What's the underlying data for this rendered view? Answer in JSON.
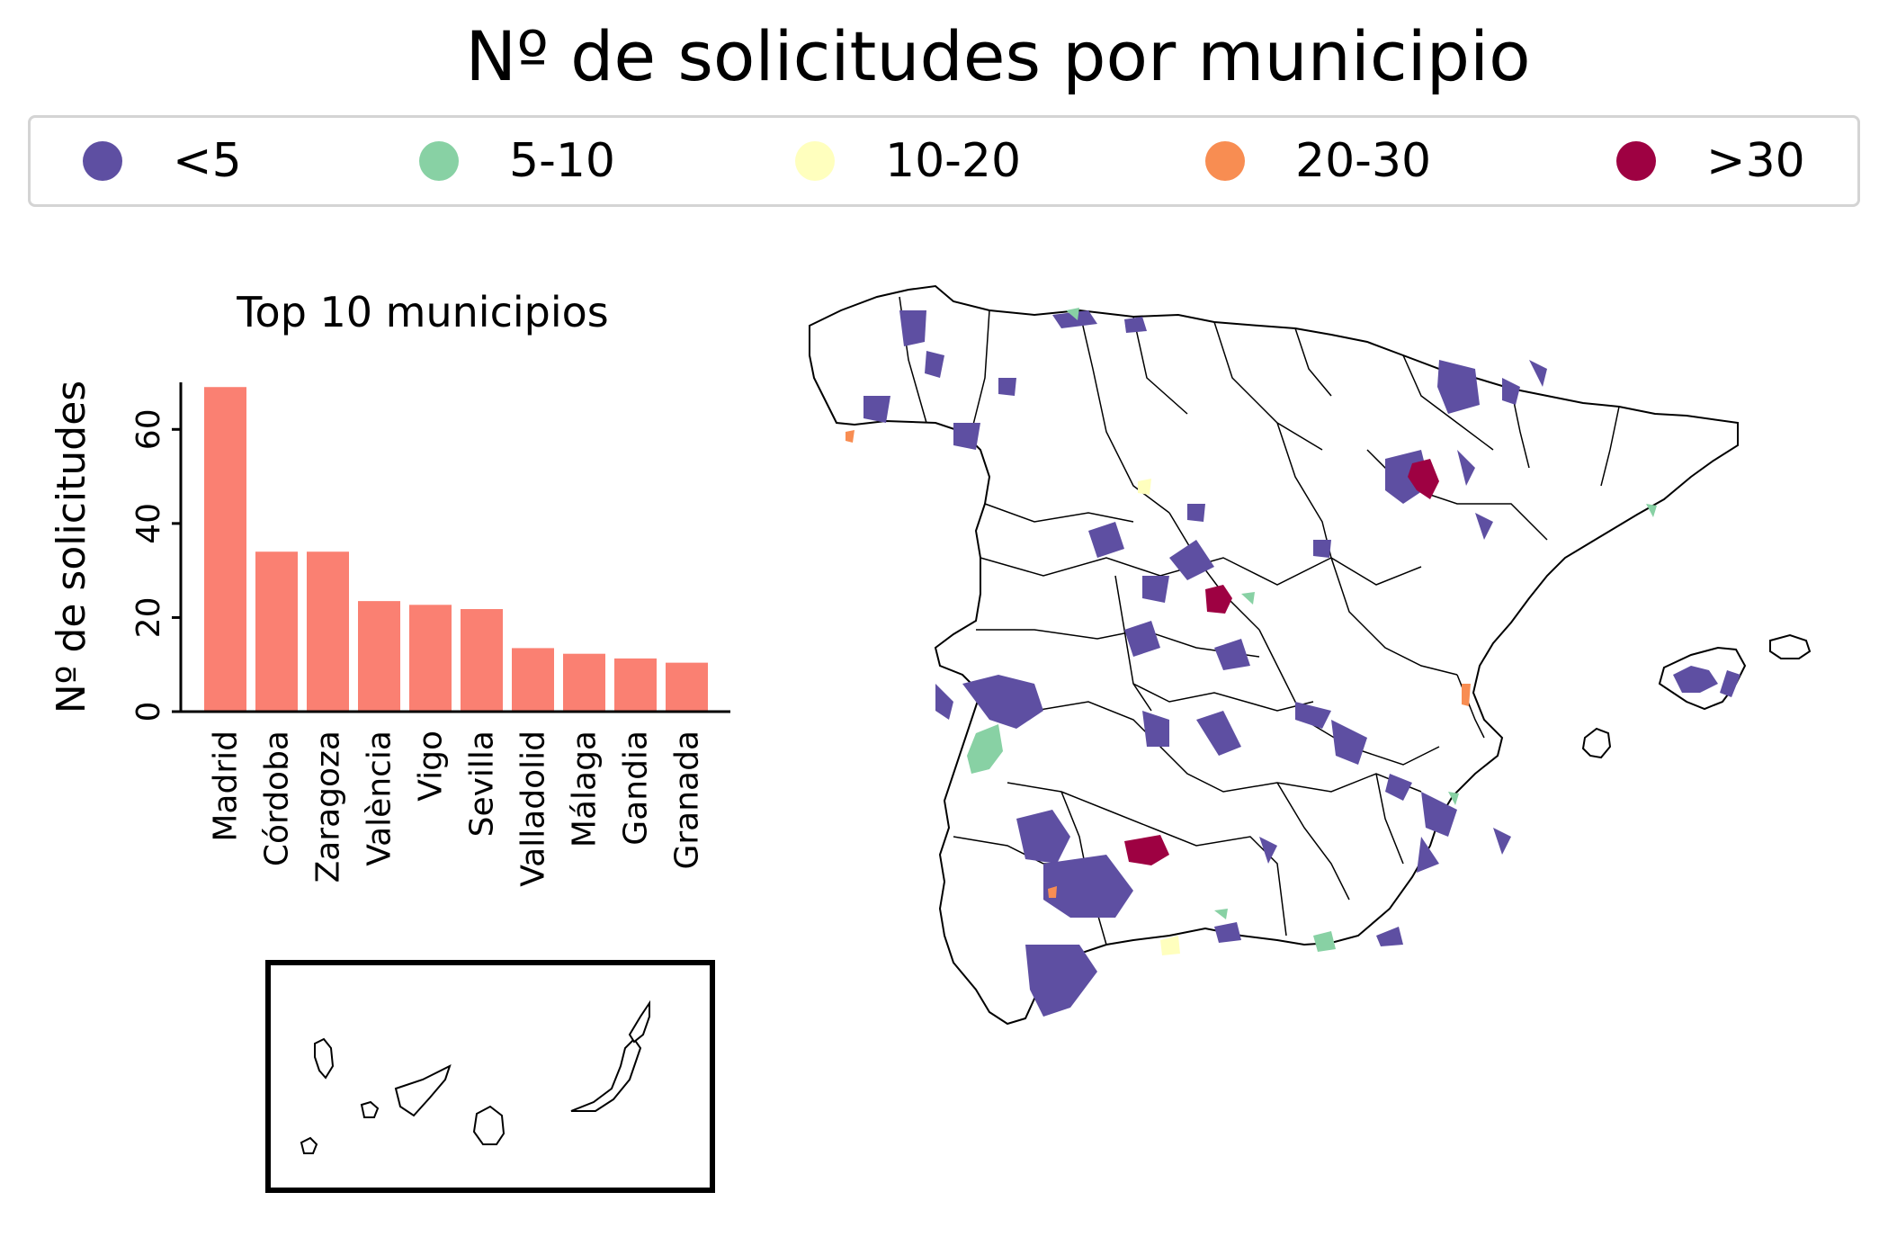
{
  "title": "Nº de solicitudes por municipio",
  "legend": {
    "items": [
      {
        "label": "<5",
        "color": "#5e4fa2"
      },
      {
        "label": "5-10",
        "color": "#88d1a4"
      },
      {
        "label": "10-20",
        "color": "#ffffbe"
      },
      {
        "label": "20-30",
        "color": "#f88d52"
      },
      {
        "label": ">30",
        "color": "#9e0142"
      }
    ]
  },
  "chart_data": {
    "type": "bar",
    "title": "Top 10 municipios",
    "ylabel": "Nº de solicitudes",
    "categories": [
      "Madrid",
      "Córdoba",
      "Zaragoza",
      "València",
      "Vigo",
      "Sevilla",
      "Valladolid",
      "Málaga",
      "Gandia",
      "Granada"
    ],
    "values": [
      69,
      34,
      34,
      23.5,
      22.7,
      21.8,
      13.5,
      12.3,
      11.3,
      10.4
    ],
    "yticks": [
      0,
      20,
      40,
      60
    ],
    "ylim": [
      0,
      70
    ],
    "bar_color": "#fa8072"
  },
  "map": {
    "region": "Spain",
    "inset": "Canary Islands",
    "colors": {
      "low": "#5e4fa2",
      "mid": "#88d1a4",
      "high": "#9e0142",
      "orange": "#f88d52",
      "yellow": "#ffffbe"
    }
  }
}
